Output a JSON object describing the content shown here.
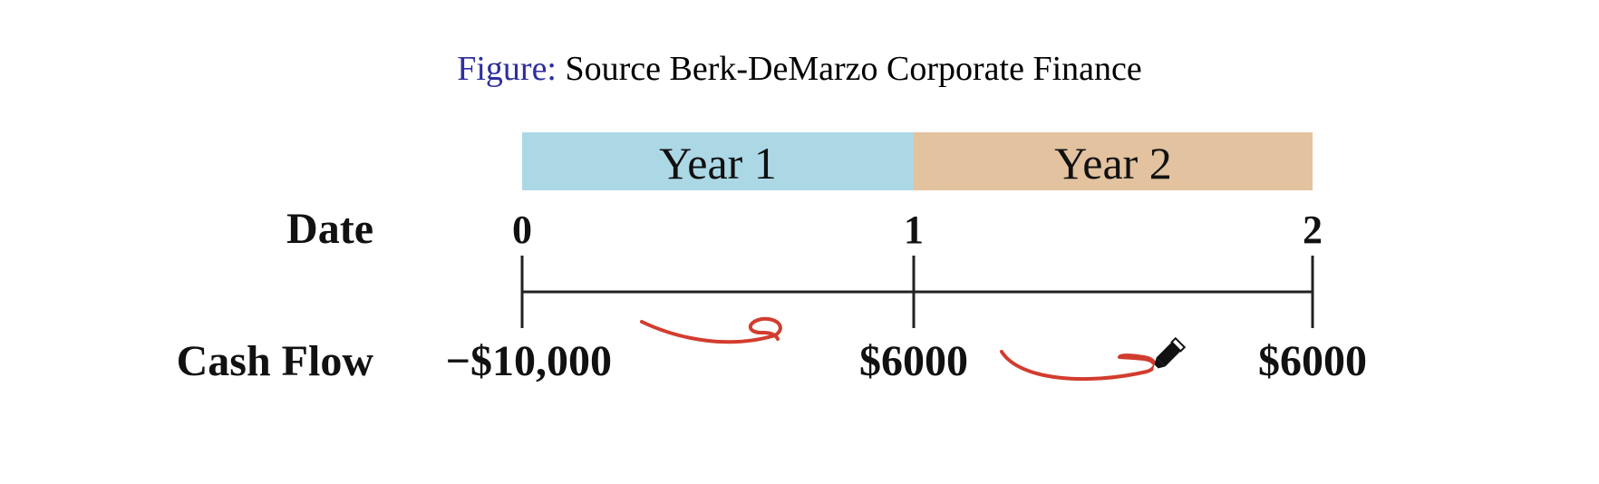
{
  "caption": {
    "label": "Figure:",
    "text": "Source Berk-DeMarzo Corporate Finance"
  },
  "timeline": {
    "row_labels": {
      "date": "Date",
      "cash_flow": "Cash Flow"
    },
    "periods": [
      {
        "label": "Year 1",
        "color": "#acd8e6"
      },
      {
        "label": "Year 2",
        "color": "#e2c29f"
      }
    ],
    "dates": [
      "0",
      "1",
      "2"
    ],
    "cash_flows": [
      "−$10,000",
      "$6000",
      "$6000"
    ],
    "line_color": "#222222"
  },
  "annotations": {
    "arrow_color": "#d23c2e",
    "cursor_icon": "pencil-icon"
  }
}
